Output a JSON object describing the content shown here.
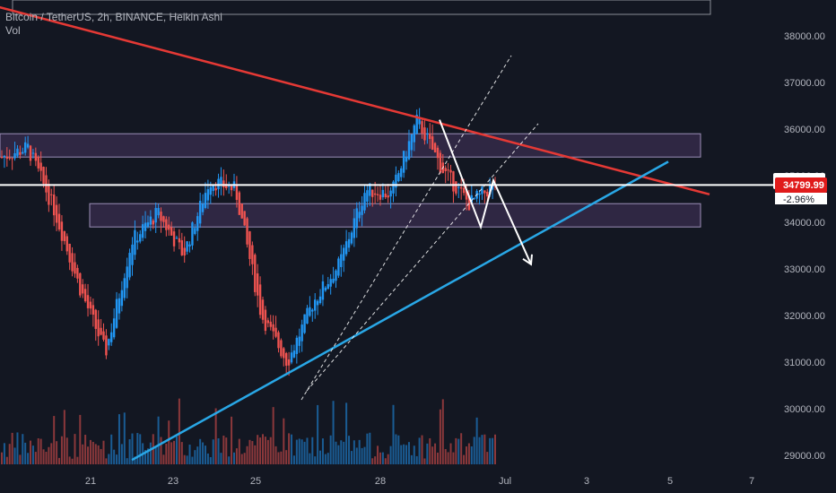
{
  "header": {
    "symbol_line": "Bitcoin / TetherUS, 2h, BINANCE, Heikin Ashi",
    "vol_label": "Vol"
  },
  "price_tags": {
    "current": "34799.99",
    "change": "-2.96%"
  },
  "colors": {
    "background": "#131722",
    "bull": "#2196f3",
    "bear": "#ef5350",
    "resistance": "#e53935",
    "support": "#29a7e6",
    "zone": "#3a2d4f",
    "guide": "#ffffff"
  },
  "chart_data": {
    "type": "candlestick",
    "title": "Bitcoin / TetherUS, 2h, BINANCE, Heikin Ashi",
    "xlabel": "",
    "ylabel": "",
    "x_ticks": [
      "21",
      "23",
      "25",
      "28",
      "Jul",
      "3",
      "5",
      "7"
    ],
    "y_ticks": [
      "29000.00",
      "30000.00",
      "31000.00",
      "32000.00",
      "33000.00",
      "34000.00",
      "35000.00",
      "36000.00",
      "37000.00",
      "38000.00"
    ],
    "ylim": [
      28800,
      38700
    ],
    "series": [
      {
        "label": "Jun 19",
        "close": 35400
      },
      {
        "label": "Jun 20",
        "close": 35600
      },
      {
        "label": "Jun 20",
        "close": 34300
      },
      {
        "label": "Jun 21",
        "close": 32600
      },
      {
        "label": "Jun 22",
        "close": 31200
      },
      {
        "label": "Jun 22",
        "close": 33600
      },
      {
        "label": "Jun 23",
        "close": 34200
      },
      {
        "label": "Jun 24",
        "close": 33300
      },
      {
        "label": "Jun 24",
        "close": 34900
      },
      {
        "label": "Jun 25",
        "close": 34700
      },
      {
        "label": "Jun 26",
        "close": 32000
      },
      {
        "label": "Jun 26",
        "close": 31000
      },
      {
        "label": "Jun 27",
        "close": 32300
      },
      {
        "label": "Jun 27",
        "close": 33100
      },
      {
        "label": "Jun 28",
        "close": 34700
      },
      {
        "label": "Jun 28",
        "close": 34600
      },
      {
        "label": "Jun 29",
        "close": 36200
      },
      {
        "label": "Jun 30",
        "close": 35100
      },
      {
        "label": "Jun 30",
        "close": 34400
      },
      {
        "label": "Jul 1",
        "close": 34800
      }
    ],
    "current_price": 34799.99,
    "horizontal_line": 34800,
    "zones": [
      {
        "top": 35900,
        "bottom": 35400
      },
      {
        "top": 34400,
        "bottom": 33900
      }
    ],
    "resistance_line": {
      "from": {
        "x": "Jun 18",
        "y": 38800
      },
      "to": {
        "x": "Jul 6",
        "y": 34600
      }
    },
    "support_line": {
      "from": {
        "x": "Jun 22",
        "y": 28900
      },
      "to": {
        "x": "Jul 5",
        "y": 35300
      }
    },
    "projected_path": [
      {
        "x": "Jun 29",
        "y": 36200
      },
      {
        "x": "Jun 30",
        "y": 33900
      },
      {
        "x": "Jun 30",
        "y": 34900
      },
      {
        "x": "Jul 1",
        "y": 33100
      }
    ],
    "grid": false,
    "volume": true
  }
}
